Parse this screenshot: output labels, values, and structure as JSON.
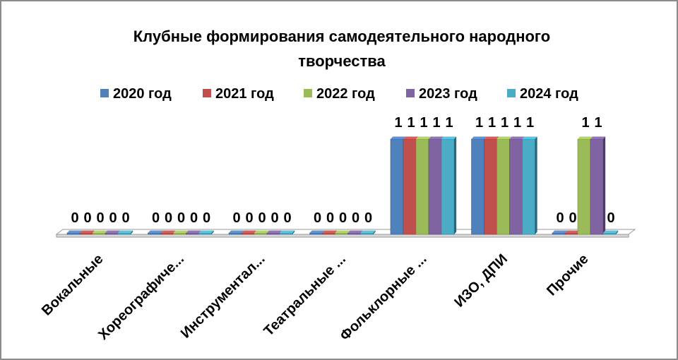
{
  "chart_data": {
    "type": "bar",
    "title": "Клубные формирования самодеятельного народного творчества",
    "title_lines": [
      "Клубные формирования самодеятельного народного",
      "творчества"
    ],
    "categories": [
      "Вокальные",
      "Хореографиче...",
      "Инструментал...",
      "Театральные ...",
      "Фольклорные ...",
      "ИЗО, ДПИ",
      "Прочие"
    ],
    "series": [
      {
        "name": "2020 год",
        "color": "#4f81bd",
        "values": [
          0,
          0,
          0,
          0,
          1,
          1,
          0
        ]
      },
      {
        "name": "2021 год",
        "color": "#c0504d",
        "values": [
          0,
          0,
          0,
          0,
          1,
          1,
          0
        ]
      },
      {
        "name": "2022 год",
        "color": "#9bbb59",
        "values": [
          0,
          0,
          0,
          0,
          1,
          1,
          1
        ]
      },
      {
        "name": "2023 год",
        "color": "#8064a2",
        "values": [
          0,
          0,
          0,
          0,
          1,
          1,
          1
        ]
      },
      {
        "name": "2024 год",
        "color": "#4bacc6",
        "values": [
          0,
          0,
          0,
          0,
          1,
          1,
          0
        ]
      }
    ],
    "data_labels": [
      [
        "0",
        "0",
        "0",
        "0",
        "0"
      ],
      [
        "0",
        "0",
        "0",
        "0",
        "0"
      ],
      [
        "0",
        "0",
        "0",
        "0",
        "0"
      ],
      [
        "0",
        "0",
        "0",
        "0",
        "0"
      ],
      [
        "1",
        "1",
        "1",
        "1",
        "1"
      ],
      [
        "1",
        "1",
        "1",
        "1",
        "1"
      ],
      [
        "0",
        "0",
        "1",
        "1",
        "0"
      ]
    ],
    "ylim": [
      0,
      1
    ],
    "grid": false,
    "legend_position": "top",
    "style": "3d-clustered-column"
  }
}
